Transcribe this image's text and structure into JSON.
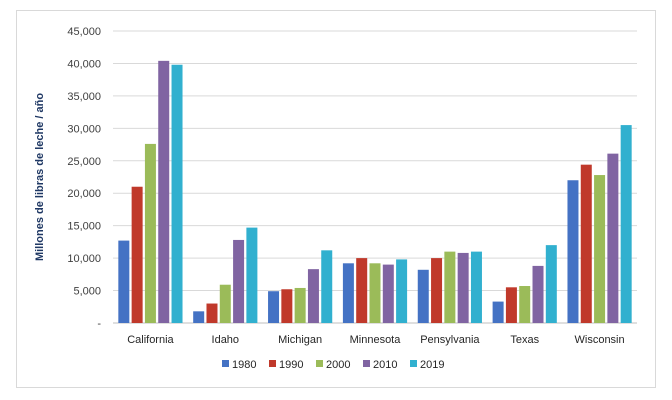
{
  "chart_data": {
    "type": "bar",
    "title": "",
    "xlabel": "",
    "ylabel": "Millones de libras de leche / año",
    "ylim": [
      0,
      45000
    ],
    "yticks": [
      0,
      5000,
      10000,
      15000,
      20000,
      25000,
      30000,
      35000,
      40000,
      45000
    ],
    "ytick_labels": [
      "-",
      "5,000",
      "10,000",
      "15,000",
      "20,000",
      "25,000",
      "30,000",
      "35,000",
      "40,000",
      "45,000"
    ],
    "grid": true,
    "legend_position": "bottom",
    "categories": [
      "California",
      "Idaho",
      "Michigan",
      "Minnesota",
      "Pensylvania",
      "Texas",
      "Wisconsin"
    ],
    "series": [
      {
        "name": "1980",
        "color": "#4472c4",
        "values": [
          12700,
          1800,
          4900,
          9200,
          8200,
          3300,
          22000
        ]
      },
      {
        "name": "1990",
        "color": "#c0392b",
        "values": [
          21000,
          3000,
          5200,
          10000,
          10000,
          5500,
          24400
        ]
      },
      {
        "name": "2000",
        "color": "#9bbb59",
        "values": [
          27600,
          5900,
          5400,
          9200,
          11000,
          5700,
          22800
        ]
      },
      {
        "name": "2010",
        "color": "#8064a2",
        "values": [
          40400,
          12800,
          8300,
          9000,
          10800,
          8800,
          26100
        ]
      },
      {
        "name": "2019",
        "color": "#31b0cf",
        "values": [
          39800,
          14700,
          11200,
          9800,
          11000,
          12000,
          30500
        ]
      }
    ]
  }
}
